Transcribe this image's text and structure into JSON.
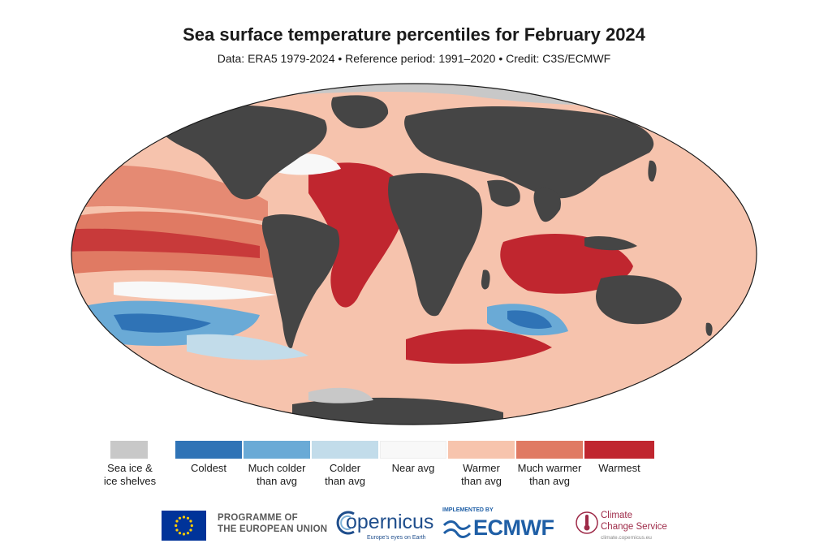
{
  "title": "Sea surface temperature percentiles for February 2024",
  "subtitle": "Data: ERA5 1979-2024 • Reference period: 1991–2020 • Credit: C3S/ECMWF",
  "legend": {
    "ice": {
      "line1": "Sea ice &",
      "line2": "ice shelves",
      "color": "#c8c8c8"
    },
    "categories": [
      {
        "line1": "Coldest",
        "line2": "",
        "color": "#2f73b6"
      },
      {
        "line1": "Much colder",
        "line2": "than avg",
        "color": "#6aaad6"
      },
      {
        "line1": "Colder",
        "line2": "than avg",
        "color": "#c2dcea"
      },
      {
        "line1": "Near avg",
        "line2": "",
        "color": "#f8f8f8"
      },
      {
        "line1": "Warmer",
        "line2": "than avg",
        "color": "#f7c4ad"
      },
      {
        "line1": "Much warmer",
        "line2": "than avg",
        "color": "#e07a63"
      },
      {
        "line1": "Warmest",
        "line2": "",
        "color": "#c0262f"
      }
    ]
  },
  "colors": {
    "land": "#454545",
    "ice": "#c8c8c8"
  },
  "logos": {
    "eu_line1": "PROGRAMME OF",
    "eu_line2": "THE EUROPEAN UNION",
    "copernicus_name": "opernicus",
    "copernicus_tagline": "Europe's eyes on Earth",
    "ecmwf_top": "IMPLEMENTED BY",
    "ecmwf_name": "ECMWF",
    "c3s_line1": "Climate",
    "c3s_line2": "Change Service",
    "c3s_url": "climate.copernicus.eu"
  }
}
